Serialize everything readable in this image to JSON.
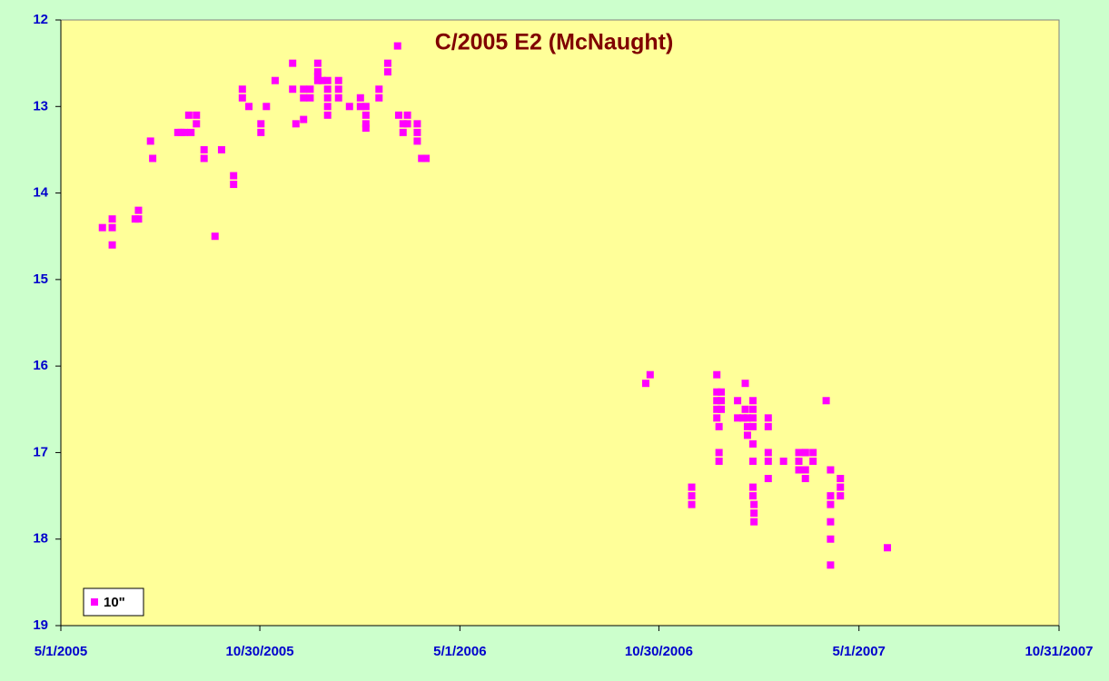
{
  "chart_data": {
    "type": "scatter",
    "title": "C/2005 E2 (McNaught)",
    "x_format": "m/d/yyyy",
    "xlim": [
      "5/1/2005",
      "10/31/2007"
    ],
    "xticks": [
      "5/1/2005",
      "10/30/2005",
      "5/1/2006",
      "10/30/2006",
      "5/1/2007",
      "10/31/2007"
    ],
    "ylim": [
      19,
      12
    ],
    "yticks": [
      12,
      13,
      14,
      15,
      16,
      17,
      18,
      19
    ],
    "legend": "bottom-left",
    "series": [
      {
        "name": "10\"",
        "color": "#ff00ff",
        "x": [
          "6/8/2005",
          "6/17/2005",
          "6/17/2005",
          "6/17/2005",
          "7/8/2005",
          "7/11/2005",
          "7/11/2005",
          "7/22/2005",
          "7/24/2005",
          "8/16/2005",
          "8/19/2005",
          "8/22/2005",
          "8/26/2005",
          "8/28/2005",
          "9/2/2005",
          "9/2/2005",
          "9/9/2005",
          "9/9/2005",
          "9/19/2005",
          "9/25/2005",
          "10/6/2005",
          "10/6/2005",
          "10/14/2005",
          "10/14/2005",
          "10/20/2005",
          "10/31/2005",
          "10/31/2005",
          "11/5/2005",
          "11/13/2005",
          "11/29/2005",
          "11/29/2005",
          "12/2/2005",
          "12/9/2005",
          "12/9/2005",
          "12/9/2005",
          "12/15/2005",
          "12/15/2005",
          "12/22/2005",
          "12/22/2005",
          "12/22/2005",
          "12/22/2005",
          "12/26/2005",
          "12/31/2005",
          "12/31/2005",
          "12/31/2005",
          "12/31/2005",
          "12/31/2005",
          "1/10/2006",
          "1/10/2006",
          "1/10/2006",
          "1/20/2006",
          "1/30/2006",
          "1/30/2006",
          "2/4/2006",
          "2/4/2006",
          "2/4/2006",
          "2/4/2006",
          "2/16/2006",
          "2/16/2006",
          "2/24/2006",
          "2/24/2006",
          "3/5/2006",
          "3/6/2006",
          "3/10/2006",
          "3/10/2006",
          "3/14/2006",
          "3/14/2006",
          "3/23/2006",
          "3/23/2006",
          "3/23/2006",
          "3/27/2006",
          "3/31/2006",
          "10/18/2006",
          "10/22/2006",
          "11/29/2006",
          "11/29/2006",
          "11/29/2006",
          "12/22/2006",
          "12/22/2006",
          "12/22/2006",
          "12/22/2006",
          "12/22/2006",
          "12/24/2006",
          "12/24/2006",
          "12/24/2006",
          "12/26/2006",
          "12/26/2006",
          "12/26/2006",
          "1/10/2007",
          "1/10/2007",
          "1/15/2007",
          "1/17/2007",
          "1/17/2007",
          "1/19/2007",
          "1/19/2007",
          "1/19/2007",
          "1/24/2007",
          "1/24/2007",
          "1/24/2007",
          "1/24/2007",
          "1/24/2007",
          "1/24/2007",
          "1/24/2007",
          "1/24/2007",
          "1/25/2007",
          "1/25/2007",
          "1/25/2007",
          "2/7/2007",
          "2/7/2007",
          "2/7/2007",
          "2/7/2007",
          "2/7/2007",
          "2/21/2007",
          "3/7/2007",
          "3/7/2007",
          "3/7/2007",
          "3/13/2007",
          "3/13/2007",
          "3/13/2007",
          "3/13/2007",
          "3/20/2007",
          "3/20/2007",
          "4/1/2007",
          "4/5/2007",
          "4/5/2007",
          "4/5/2007",
          "4/5/2007",
          "4/5/2007",
          "4/5/2007",
          "4/14/2007",
          "4/14/2007",
          "4/14/2007",
          "5/27/2007"
        ],
        "values": [
          14.4,
          14.3,
          14.4,
          14.6,
          14.3,
          14.3,
          14.2,
          13.4,
          13.6,
          13.3,
          13.3,
          13.3,
          13.1,
          13.3,
          13.1,
          13.2,
          13.5,
          13.6,
          14.5,
          13.5,
          13.8,
          13.9,
          12.8,
          12.9,
          13.0,
          13.2,
          13.3,
          13.0,
          12.7,
          12.8,
          12.5,
          13.2,
          13.15,
          12.8,
          12.9,
          12.8,
          12.9,
          12.5,
          12.6,
          12.65,
          12.7,
          12.7,
          12.7,
          12.8,
          12.9,
          13.0,
          13.1,
          12.7,
          12.8,
          12.9,
          13.0,
          12.9,
          13.0,
          13.0,
          13.1,
          13.2,
          13.25,
          12.9,
          12.8,
          12.5,
          12.6,
          12.3,
          13.1,
          13.2,
          13.3,
          13.1,
          13.2,
          13.2,
          13.3,
          13.4,
          13.6,
          13.6,
          16.2,
          16.1,
          17.4,
          17.5,
          17.6,
          16.3,
          16.4,
          16.5,
          16.6,
          16.1,
          16.7,
          17.0,
          17.1,
          16.3,
          16.4,
          16.5,
          16.4,
          16.6,
          16.6,
          16.2,
          16.5,
          16.6,
          16.8,
          16.7,
          16.6,
          16.4,
          16.5,
          16.7,
          16.9,
          17.1,
          17.4,
          17.5,
          17.6,
          17.7,
          17.8,
          16.7,
          16.6,
          17.0,
          17.1,
          17.3,
          17.1,
          17.0,
          17.1,
          17.2,
          17.0,
          17.2,
          17.3,
          17.0,
          17.0,
          17.1,
          16.4,
          17.2,
          17.5,
          17.6,
          17.8,
          18.0,
          18.3,
          17.3,
          17.4,
          17.5,
          18.1
        ]
      }
    ]
  }
}
